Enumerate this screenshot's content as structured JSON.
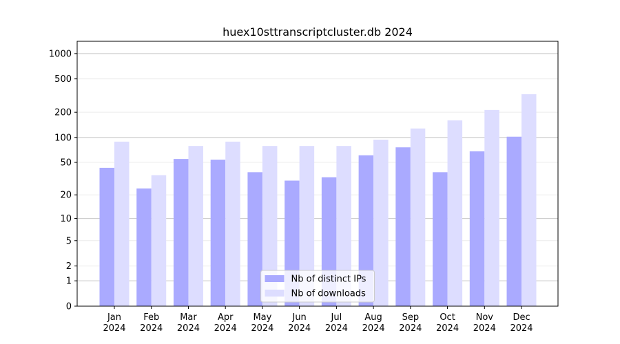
{
  "chart_data": {
    "type": "bar",
    "title": "huex10sttranscriptcluster.db 2024",
    "categories": [
      "Jan 2024",
      "Feb 2024",
      "Mar 2024",
      "Apr 2024",
      "May 2024",
      "Jun 2024",
      "Jul 2024",
      "Aug 2024",
      "Sep 2024",
      "Oct 2024",
      "Nov 2024",
      "Dec 2024"
    ],
    "series": [
      {
        "name": "Nb of distinct IPs",
        "color": "#aaaaff",
        "values": [
          43,
          24,
          55,
          54,
          38,
          30,
          33,
          61,
          76,
          38,
          68,
          102
        ]
      },
      {
        "name": "Nb of downloads",
        "color": "#ddddff",
        "values": [
          89,
          35,
          79,
          89,
          79,
          79,
          79,
          94,
          128,
          160,
          213,
          329
        ]
      }
    ],
    "yscale": "log1p",
    "ylim": [
      0,
      1400
    ],
    "yticks": [
      0,
      1,
      2,
      5,
      10,
      20,
      50,
      100,
      200,
      500,
      1000
    ],
    "grid": true,
    "legend": "lower center"
  }
}
